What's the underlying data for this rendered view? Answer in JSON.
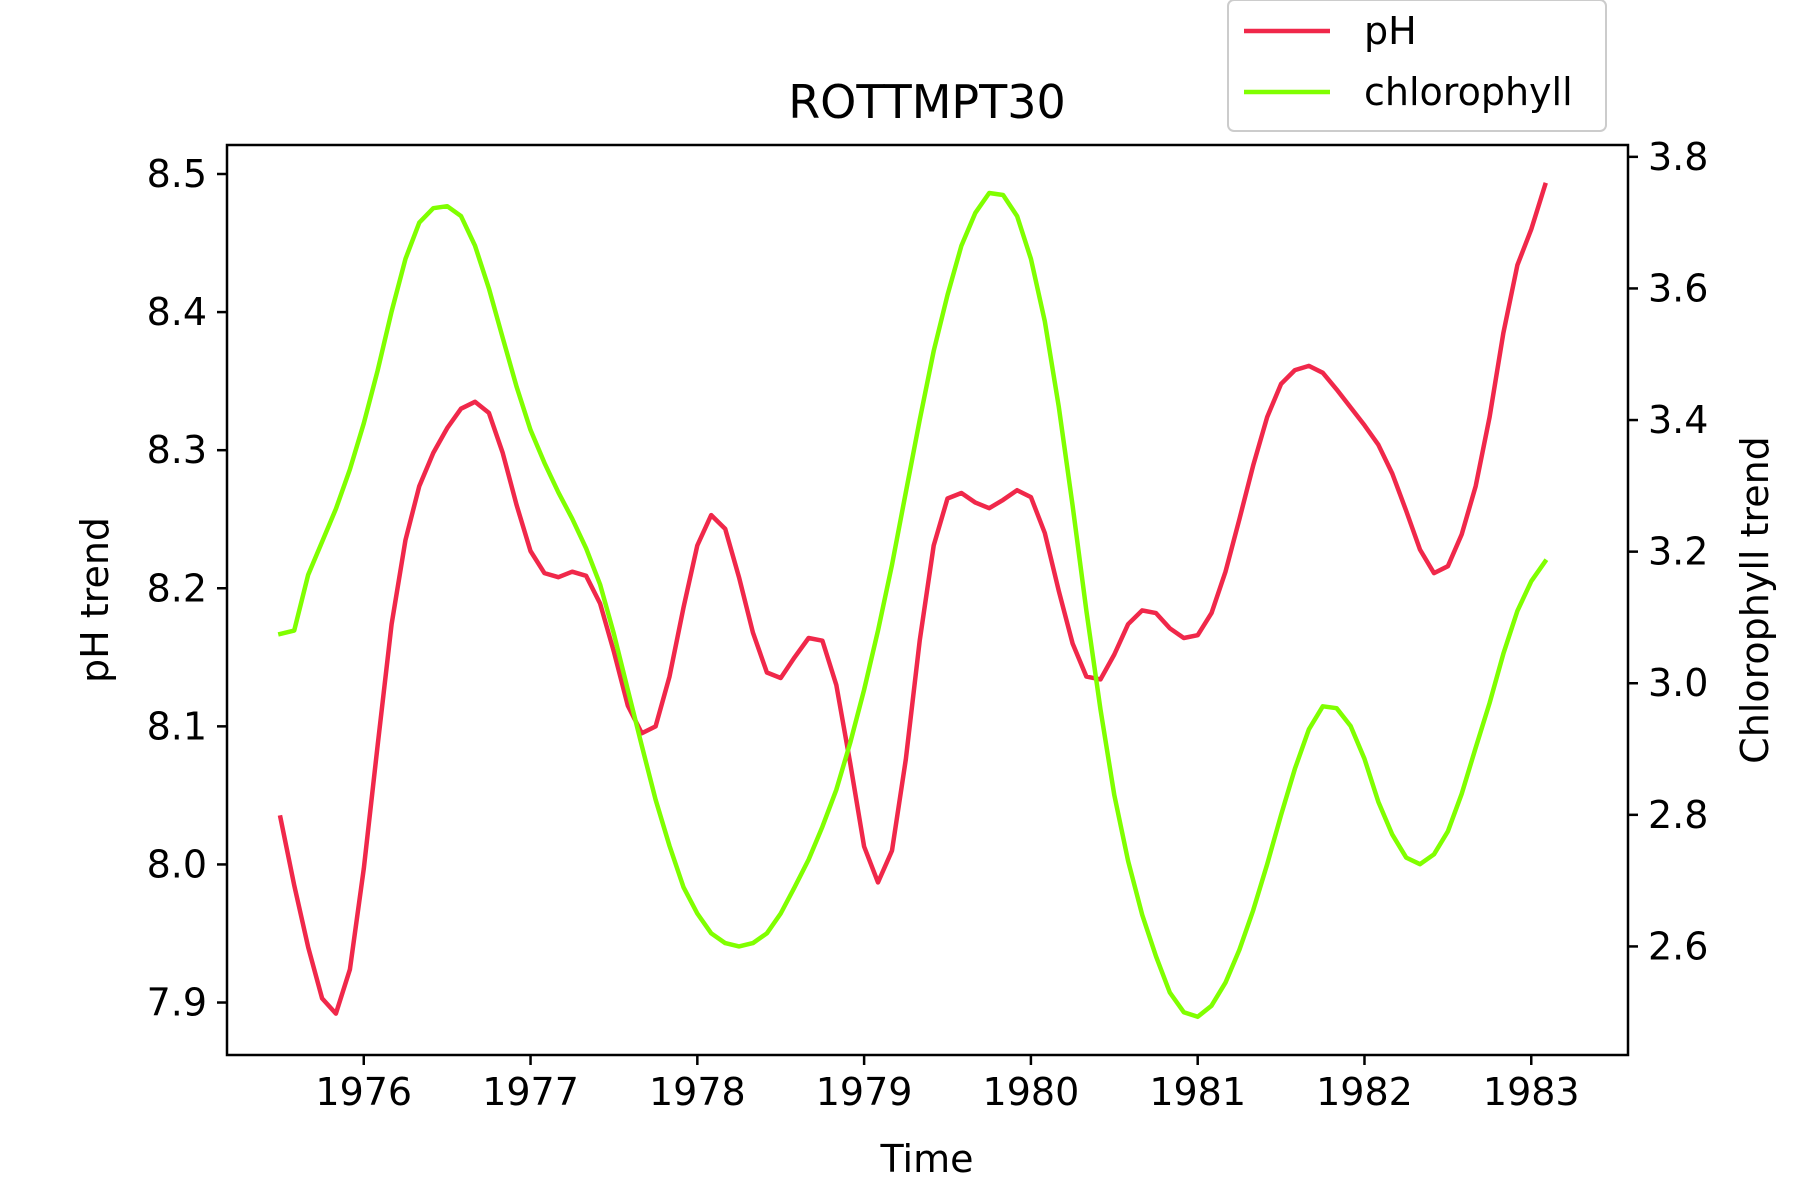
{
  "chart_data": {
    "type": "line",
    "title": "ROTTMPT30",
    "xlabel": "Time",
    "ylabel": "pH trend",
    "ylabel_right": "Chlorophyll trend",
    "x_ticks": [
      "1976",
      "1977",
      "1978",
      "1979",
      "1980",
      "1981",
      "1982",
      "1983"
    ],
    "y_ticks": [
      "7.9",
      "8.0",
      "8.1",
      "8.2",
      "8.3",
      "8.4",
      "8.5"
    ],
    "y_ticks_right": [
      "2.6",
      "2.8",
      "3.0",
      "3.2",
      "3.4",
      "3.6",
      "3.8"
    ],
    "xlim": [
      1975.18,
      1983.58
    ],
    "ylim": [
      7.862,
      8.521
    ],
    "ylim_right": [
      2.435,
      3.818
    ],
    "grid": false,
    "legend_position": "top-right",
    "series": [
      {
        "name": "pH",
        "axis": "left",
        "color": "#f0284a",
        "x": [
          1975.5,
          1975.583,
          1975.667,
          1975.75,
          1975.833,
          1975.917,
          1976.0,
          1976.083,
          1976.167,
          1976.25,
          1976.333,
          1976.417,
          1976.5,
          1976.583,
          1976.667,
          1976.75,
          1976.833,
          1976.917,
          1977.0,
          1977.083,
          1977.167,
          1977.25,
          1977.333,
          1977.417,
          1977.5,
          1977.583,
          1977.667,
          1977.75,
          1977.833,
          1977.917,
          1978.0,
          1978.083,
          1978.167,
          1978.25,
          1978.333,
          1978.417,
          1978.5,
          1978.583,
          1978.667,
          1978.75,
          1978.833,
          1978.917,
          1979.0,
          1979.083,
          1979.167,
          1979.25,
          1979.333,
          1979.417,
          1979.5,
          1979.583,
          1979.667,
          1979.75,
          1979.833,
          1979.917,
          1980.0,
          1980.083,
          1980.167,
          1980.25,
          1980.333,
          1980.417,
          1980.5,
          1980.583,
          1980.667,
          1980.75,
          1980.833,
          1980.917,
          1981.0,
          1981.083,
          1981.167,
          1981.25,
          1981.333,
          1981.417,
          1981.5,
          1981.583,
          1981.667,
          1981.75,
          1981.833,
          1981.917,
          1982.0,
          1982.083,
          1982.167,
          1982.25,
          1982.333,
          1982.417,
          1982.5,
          1982.583,
          1982.667,
          1982.75,
          1982.833,
          1982.917,
          1983.0,
          1983.083
        ],
        "y": [
          8.034,
          7.985,
          7.94,
          7.903,
          7.892,
          7.924,
          7.997,
          8.086,
          8.174,
          8.235,
          8.274,
          8.298,
          8.316,
          8.33,
          8.335,
          8.327,
          8.298,
          8.26,
          8.227,
          8.211,
          8.208,
          8.212,
          8.209,
          8.189,
          8.154,
          8.115,
          8.095,
          8.1,
          8.136,
          8.186,
          8.231,
          8.253,
          8.243,
          8.208,
          8.168,
          8.139,
          8.135,
          8.15,
          8.164,
          8.162,
          8.13,
          8.073,
          8.013,
          7.987,
          8.01,
          8.076,
          8.162,
          8.231,
          8.265,
          8.269,
          8.262,
          8.258,
          8.264,
          8.271,
          8.266,
          8.24,
          8.198,
          8.16,
          8.136,
          8.134,
          8.152,
          8.174,
          8.184,
          8.182,
          8.171,
          8.164,
          8.166,
          8.182,
          8.212,
          8.25,
          8.289,
          8.324,
          8.348,
          8.358,
          8.361,
          8.356,
          8.344,
          8.331,
          8.318,
          8.304,
          8.283,
          8.256,
          8.228,
          8.211,
          8.216,
          8.239,
          8.274,
          8.324,
          8.385,
          8.434,
          8.46,
          8.492
        ]
      },
      {
        "name": "chlorophyll",
        "axis": "right",
        "color": "#80ff00",
        "x": [
          1975.5,
          1975.583,
          1975.667,
          1975.75,
          1975.833,
          1975.917,
          1976.0,
          1976.083,
          1976.167,
          1976.25,
          1976.333,
          1976.417,
          1976.5,
          1976.583,
          1976.667,
          1976.75,
          1976.833,
          1976.917,
          1977.0,
          1977.083,
          1977.167,
          1977.25,
          1977.333,
          1977.417,
          1977.5,
          1977.583,
          1977.667,
          1977.75,
          1977.833,
          1977.917,
          1978.0,
          1978.083,
          1978.167,
          1978.25,
          1978.333,
          1978.417,
          1978.5,
          1978.583,
          1978.667,
          1978.75,
          1978.833,
          1978.917,
          1979.0,
          1979.083,
          1979.167,
          1979.25,
          1979.333,
          1979.417,
          1979.5,
          1979.583,
          1979.667,
          1979.75,
          1979.833,
          1979.917,
          1980.0,
          1980.083,
          1980.167,
          1980.25,
          1980.333,
          1980.417,
          1980.5,
          1980.583,
          1980.667,
          1980.75,
          1980.833,
          1980.917,
          1981.0,
          1981.083,
          1981.167,
          1981.25,
          1981.333,
          1981.417,
          1981.5,
          1981.583,
          1981.667,
          1981.75,
          1981.833,
          1981.917,
          1982.0,
          1982.083,
          1982.167,
          1982.25,
          1982.333,
          1982.417,
          1982.5,
          1982.583,
          1982.667,
          1982.75,
          1982.833,
          1982.917,
          1983.0,
          1983.083
        ],
        "y": [
          3.075,
          3.08,
          3.165,
          3.215,
          3.265,
          3.325,
          3.395,
          3.475,
          3.565,
          3.645,
          3.7,
          3.722,
          3.725,
          3.71,
          3.665,
          3.6,
          3.525,
          3.45,
          3.385,
          3.335,
          3.29,
          3.25,
          3.205,
          3.15,
          3.075,
          2.99,
          2.905,
          2.823,
          2.753,
          2.69,
          2.65,
          2.62,
          2.605,
          2.6,
          2.605,
          2.62,
          2.65,
          2.69,
          2.732,
          2.782,
          2.838,
          2.91,
          2.99,
          3.08,
          3.18,
          3.29,
          3.4,
          3.505,
          3.59,
          3.665,
          3.715,
          3.745,
          3.742,
          3.71,
          3.645,
          3.55,
          3.42,
          3.27,
          3.11,
          2.96,
          2.83,
          2.73,
          2.648,
          2.585,
          2.53,
          2.5,
          2.493,
          2.51,
          2.545,
          2.595,
          2.655,
          2.725,
          2.8,
          2.87,
          2.93,
          2.965,
          2.962,
          2.935,
          2.885,
          2.82,
          2.77,
          2.735,
          2.725,
          2.74,
          2.775,
          2.832,
          2.902,
          2.97,
          3.045,
          3.11,
          3.155,
          3.185
        ]
      }
    ]
  }
}
